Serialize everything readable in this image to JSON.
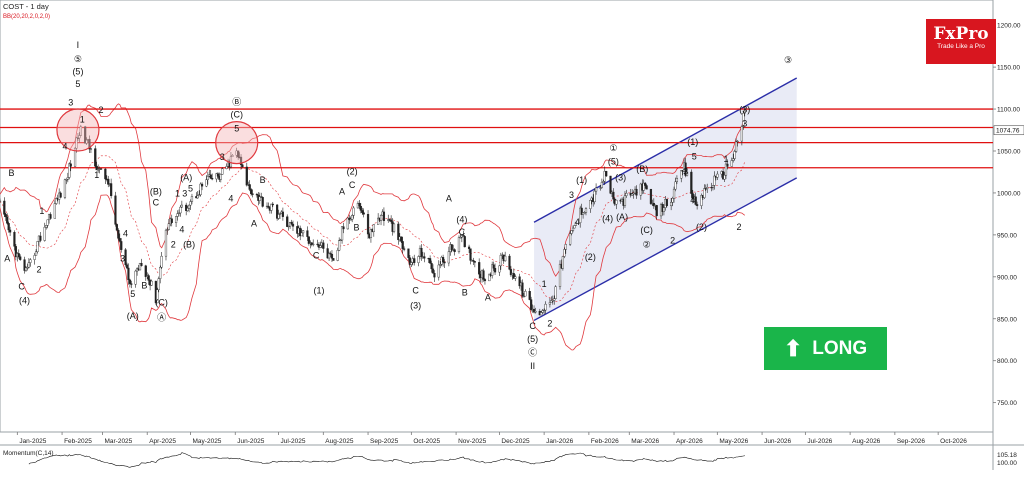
{
  "header": {
    "symbol_label": "COST - 1 day",
    "indicator_label": "BB(20,20,2,0,2,0)"
  },
  "brand": {
    "name": "FxPro",
    "tagline": "Trade Like a Pro",
    "color": "#d8161f"
  },
  "signal": {
    "label": "LONG",
    "icon": "up-arrow-icon",
    "color": "#1ab54a"
  },
  "momentum": {
    "label": "Momentum(C,14)",
    "value_label": "105.18",
    "second_label": "100.00"
  },
  "chart_data": {
    "type": "candlestick",
    "y_range": [
      715,
      1230
    ],
    "y_ticks": [
      750,
      800,
      850,
      900,
      950,
      1000,
      1050,
      1100,
      1150,
      1200
    ],
    "current_price_label": "1074.76",
    "x_ticks": [
      "Jan-2025",
      "Feb-2025",
      "Mar-2025",
      "Apr-2025",
      "May-2025",
      "Jun-2025",
      "Jul-2025",
      "Aug-2025",
      "Sep-2025",
      "Oct-2025",
      "Nov-2025",
      "Dec-2025",
      "Jan-2026",
      "Feb-2026",
      "Mar-2026",
      "Apr-2026",
      "May-2026",
      "Jun-2026",
      "Jul-2026",
      "Aug-2026",
      "Sep-2026",
      "Oct-2026"
    ],
    "price_path": [
      [
        "2024-12-20",
        985
      ],
      [
        "2025-01-02",
        920
      ],
      [
        "2025-01-08",
        905
      ],
      [
        "2025-01-15",
        940
      ],
      [
        "2025-01-25",
        980
      ],
      [
        "2025-02-03",
        1010
      ],
      [
        "2025-02-13",
        1075
      ],
      [
        "2025-02-20",
        1055
      ],
      [
        "2025-02-27",
        1025
      ],
      [
        "2025-03-05",
        1015
      ],
      [
        "2025-03-12",
        945
      ],
      [
        "2025-03-20",
        890
      ],
      [
        "2025-03-28",
        920
      ],
      [
        "2025-04-07",
        875
      ],
      [
        "2025-04-14",
        960
      ],
      [
        "2025-04-22",
        975
      ],
      [
        "2025-05-01",
        990
      ],
      [
        "2025-05-12",
        1015
      ],
      [
        "2025-05-22",
        1020
      ],
      [
        "2025-06-02",
        1050
      ],
      [
        "2025-06-09",
        1010
      ],
      [
        "2025-06-20",
        990
      ],
      [
        "2025-07-01",
        975
      ],
      [
        "2025-07-10",
        960
      ],
      [
        "2025-07-22",
        945
      ],
      [
        "2025-08-01",
        935
      ],
      [
        "2025-08-08",
        915
      ],
      [
        "2025-08-15",
        960
      ],
      [
        "2025-08-25",
        990
      ],
      [
        "2025-09-02",
        950
      ],
      [
        "2025-09-10",
        975
      ],
      [
        "2025-09-18",
        960
      ],
      [
        "2025-09-25",
        935
      ],
      [
        "2025-10-01",
        915
      ],
      [
        "2025-10-08",
        930
      ],
      [
        "2025-10-17",
        905
      ],
      [
        "2025-10-27",
        930
      ],
      [
        "2025-11-05",
        945
      ],
      [
        "2025-11-13",
        920
      ],
      [
        "2025-11-20",
        900
      ],
      [
        "2025-11-28",
        910
      ],
      [
        "2025-12-04",
        925
      ],
      [
        "2025-12-10",
        905
      ],
      [
        "2025-12-18",
        880
      ],
      [
        "2025-12-26",
        855
      ],
      [
        "2026-01-02",
        865
      ],
      [
        "2026-01-08",
        880
      ],
      [
        "2026-01-15",
        930
      ],
      [
        "2026-01-25",
        975
      ],
      [
        "2026-02-04",
        995
      ],
      [
        "2026-02-12",
        1020
      ],
      [
        "2026-02-20",
        985
      ],
      [
        "2026-03-01",
        995
      ],
      [
        "2026-03-10",
        1010
      ],
      [
        "2026-03-20",
        975
      ],
      [
        "2026-03-30",
        995
      ],
      [
        "2026-04-08",
        1030
      ],
      [
        "2026-04-16",
        985
      ],
      [
        "2026-04-25",
        1010
      ],
      [
        "2026-05-04",
        1020
      ],
      [
        "2026-05-12",
        1045
      ],
      [
        "2026-05-20",
        1095
      ]
    ],
    "resistance_levels": [
      1100,
      1078,
      1060,
      1030
    ],
    "channel": {
      "upper": [
        [
          "2025-12-25",
          965
        ],
        [
          "2026-06-25",
          1137
        ]
      ],
      "lower": [
        [
          "2025-12-25",
          848
        ],
        [
          "2026-06-25",
          1018
        ]
      ]
    },
    "highlight_circles": [
      {
        "date": "2025-02-12",
        "price": 1075
      },
      {
        "date": "2025-06-02",
        "price": 1060
      }
    ],
    "wave_labels": [
      {
        "text": "I",
        "date": "2025-02-12",
        "price": 1173
      },
      {
        "text": "⑤",
        "date": "2025-02-12",
        "price": 1156
      },
      {
        "text": "(5)",
        "date": "2025-02-12",
        "price": 1141
      },
      {
        "text": "5",
        "date": "2025-02-12",
        "price": 1126
      },
      {
        "text": "3",
        "date": "2025-02-07",
        "price": 1104
      },
      {
        "text": "1",
        "date": "2025-02-15",
        "price": 1084
      },
      {
        "text": "2",
        "date": "2025-02-28",
        "price": 1095
      },
      {
        "text": "4",
        "date": "2025-02-03",
        "price": 1052
      },
      {
        "text": "1",
        "date": "2025-02-25",
        "price": 1018
      },
      {
        "text": "B",
        "date": "2024-12-28",
        "price": 1020
      },
      {
        "text": "A",
        "date": "2024-12-25",
        "price": 918
      },
      {
        "text": "C",
        "date": "2025-01-04",
        "price": 885
      },
      {
        "text": "(4)",
        "date": "2025-01-06",
        "price": 868
      },
      {
        "text": "2",
        "date": "2025-01-16",
        "price": 905
      },
      {
        "text": "1",
        "date": "2025-01-18",
        "price": 975
      },
      {
        "text": "4",
        "date": "2025-03-17",
        "price": 948
      },
      {
        "text": "3",
        "date": "2025-03-15",
        "price": 918
      },
      {
        "text": "5",
        "date": "2025-03-22",
        "price": 876
      },
      {
        "text": "B",
        "date": "2025-03-30",
        "price": 886
      },
      {
        "text": "(A)",
        "date": "2025-03-22",
        "price": 850
      },
      {
        "text": "(B)",
        "date": "2025-04-07",
        "price": 998
      },
      {
        "text": "C",
        "date": "2025-04-07",
        "price": 985
      },
      {
        "text": "(C)",
        "date": "2025-04-11",
        "price": 866
      },
      {
        "text": "Ⓐ",
        "date": "2025-04-11",
        "price": 848
      },
      {
        "text": "(A)",
        "date": "2025-04-28",
        "price": 1015
      },
      {
        "text": "5",
        "date": "2025-05-01",
        "price": 1002
      },
      {
        "text": "1",
        "date": "2025-04-22",
        "price": 996
      },
      {
        "text": "3",
        "date": "2025-04-27",
        "price": 996
      },
      {
        "text": "4",
        "date": "2025-04-25",
        "price": 953
      },
      {
        "text": "2",
        "date": "2025-04-19",
        "price": 935
      },
      {
        "text": "(B)",
        "date": "2025-04-30",
        "price": 935
      },
      {
        "text": "Ⓑ",
        "date": "2025-06-02",
        "price": 1105
      },
      {
        "text": "(C)",
        "date": "2025-06-02",
        "price": 1090
      },
      {
        "text": "5",
        "date": "2025-06-02",
        "price": 1073
      },
      {
        "text": "3",
        "date": "2025-05-23",
        "price": 1039
      },
      {
        "text": "4",
        "date": "2025-05-29",
        "price": 990
      },
      {
        "text": "B",
        "date": "2025-06-20",
        "price": 1012
      },
      {
        "text": "A",
        "date": "2025-06-14",
        "price": 960
      },
      {
        "text": "C",
        "date": "2025-07-27",
        "price": 922
      },
      {
        "text": "(1)",
        "date": "2025-07-29",
        "price": 880
      },
      {
        "text": "(2)",
        "date": "2025-08-21",
        "price": 1022
      },
      {
        "text": "C",
        "date": "2025-08-21",
        "price": 1006
      },
      {
        "text": "A",
        "date": "2025-08-14",
        "price": 998
      },
      {
        "text": "B",
        "date": "2025-08-24",
        "price": 955
      },
      {
        "text": "C",
        "date": "2025-10-04",
        "price": 880
      },
      {
        "text": "(3)",
        "date": "2025-10-04",
        "price": 862
      },
      {
        "text": "A",
        "date": "2025-10-27",
        "price": 990
      },
      {
        "text": "(4)",
        "date": "2025-11-05",
        "price": 965
      },
      {
        "text": "C",
        "date": "2025-11-05",
        "price": 950
      },
      {
        "text": "B",
        "date": "2025-11-07",
        "price": 878
      },
      {
        "text": "A",
        "date": "2025-11-23",
        "price": 872
      },
      {
        "text": "C",
        "date": "2025-12-24",
        "price": 838
      },
      {
        "text": "(5)",
        "date": "2025-12-24",
        "price": 822
      },
      {
        "text": "Ⓒ",
        "date": "2025-12-24",
        "price": 806
      },
      {
        "text": "II",
        "date": "2025-12-24",
        "price": 790
      },
      {
        "text": "1",
        "date": "2026-01-01",
        "price": 888
      },
      {
        "text": "2",
        "date": "2026-01-05",
        "price": 841
      },
      {
        "text": "3",
        "date": "2026-01-20",
        "price": 994
      },
      {
        "text": "(1)",
        "date": "2026-01-27",
        "price": 1012
      },
      {
        "text": "4",
        "date": "2026-01-24",
        "price": 962
      },
      {
        "text": "(2)",
        "date": "2026-02-02",
        "price": 920
      },
      {
        "text": "①",
        "date": "2026-02-18",
        "price": 1050
      },
      {
        "text": "(5)",
        "date": "2026-02-18",
        "price": 1034
      },
      {
        "text": "(3)",
        "date": "2026-02-23",
        "price": 1015
      },
      {
        "text": "(4)",
        "date": "2026-02-14",
        "price": 966
      },
      {
        "text": "(A)",
        "date": "2026-02-24",
        "price": 968
      },
      {
        "text": "(B)",
        "date": "2026-03-10",
        "price": 1025
      },
      {
        "text": "(C)",
        "date": "2026-03-13",
        "price": 952
      },
      {
        "text": "②",
        "date": "2026-03-13",
        "price": 935
      },
      {
        "text": "2",
        "date": "2026-03-31",
        "price": 940
      },
      {
        "text": "(1)",
        "date": "2026-04-14",
        "price": 1057
      },
      {
        "text": "5",
        "date": "2026-04-15",
        "price": 1040
      },
      {
        "text": "3",
        "date": "2026-04-09",
        "price": 1022
      },
      {
        "text": "4",
        "date": "2026-04-14",
        "price": 988
      },
      {
        "text": "(2)",
        "date": "2026-04-20",
        "price": 956
      },
      {
        "text": "1",
        "date": "2026-05-07",
        "price": 1037
      },
      {
        "text": "2",
        "date": "2026-05-16",
        "price": 956
      },
      {
        "text": "(3)",
        "date": "2026-05-20",
        "price": 1096
      },
      {
        "text": "3",
        "date": "2026-05-20",
        "price": 1079
      },
      {
        "text": "③",
        "date": "2026-06-19",
        "price": 1155
      }
    ]
  }
}
